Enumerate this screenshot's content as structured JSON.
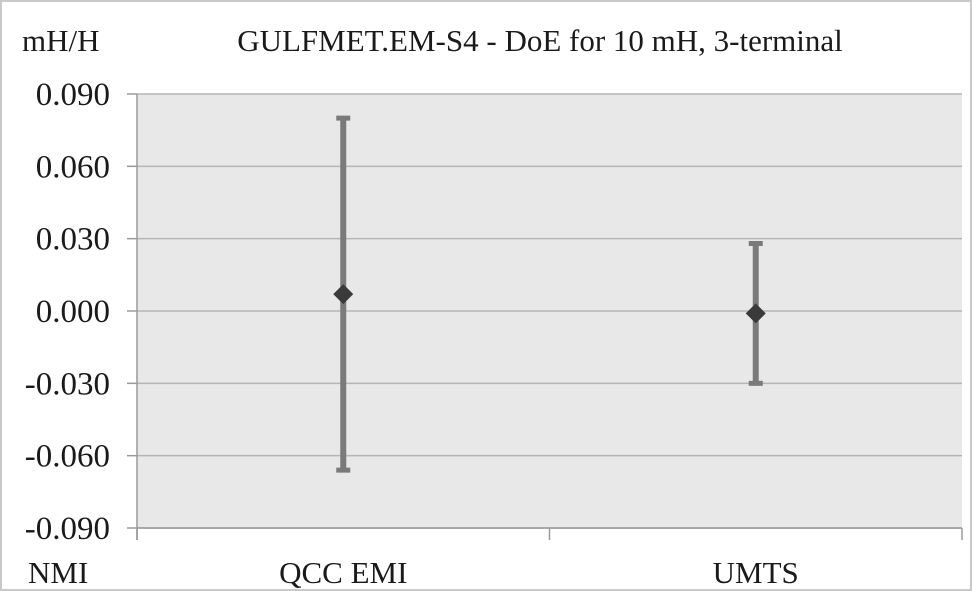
{
  "chart_data": {
    "type": "scatter",
    "title": "GULFMET.EM-S4 - DoE for 10 mH, 3-terminal",
    "ylabel": "mH/H",
    "xlabel": "NMI",
    "categories": [
      "QCC EMI",
      "UMTS"
    ],
    "ylim": [
      -0.09,
      0.09
    ],
    "yticks": [
      0.09,
      0.06,
      0.03,
      0.0,
      -0.03,
      -0.06,
      -0.09
    ],
    "ytick_labels": [
      "0.090",
      "0.060",
      "0.030",
      "0.000",
      "-0.030",
      "-0.060",
      "-0.090"
    ],
    "grid": true,
    "points": [
      {
        "category": "QCC EMI",
        "value": 0.007,
        "err_low": -0.066,
        "err_high": 0.08
      },
      {
        "category": "UMTS",
        "value": -0.001,
        "err_low": -0.03,
        "err_high": 0.028
      }
    ],
    "colors": {
      "plot_bg": "#e8e8e8",
      "grid": "#b5b5b5",
      "errorbar": "#7a7a7a",
      "marker": "#3a3a3a",
      "axis": "#9a9a9a"
    }
  }
}
